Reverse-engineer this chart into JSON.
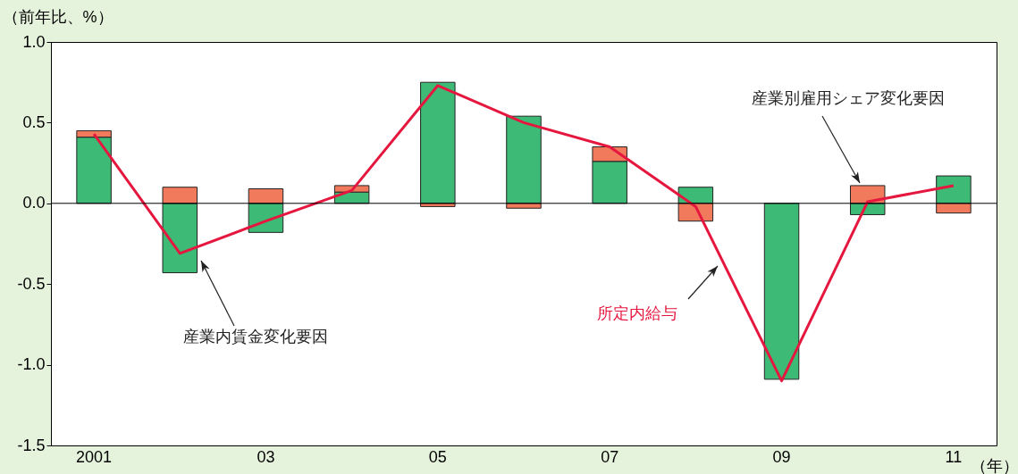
{
  "chart_data": {
    "type": "bar",
    "stacked": true,
    "ylabel": "（前年比、%）",
    "xlabel": "（年）",
    "categories": [
      "2001",
      null,
      "03",
      null,
      "05",
      null,
      "07",
      null,
      "09",
      null,
      "11"
    ],
    "series": [
      {
        "name": "産業内賃金変化要因",
        "color": "#3dba76",
        "values": [
          0.41,
          -0.43,
          -0.18,
          0.07,
          0.75,
          0.54,
          0.26,
          0.1,
          -1.09,
          -0.07,
          0.17
        ]
      },
      {
        "name": "産業別雇用シェア変化要因",
        "color": "#f27a5c",
        "values": [
          0.04,
          0.1,
          0.09,
          0.04,
          -0.02,
          -0.03,
          0.09,
          -0.11,
          null,
          0.11,
          -0.06
        ]
      },
      {
        "name": "所定内給与",
        "type": "line",
        "color": "#e5173f",
        "values": [
          0.43,
          -0.31,
          -0.11,
          0.08,
          0.73,
          0.5,
          0.35,
          -0.02,
          -1.1,
          0.01,
          0.11
        ]
      }
    ],
    "ylim": [
      -1.5,
      1.0
    ],
    "yticks": [
      {
        "value": -1.5,
        "label": "-1.5"
      },
      {
        "value": -1,
        "label": "-1.0"
      },
      {
        "value": -0.5,
        "label": "-0.5"
      },
      {
        "value": 0,
        "label": "0.0"
      },
      {
        "value": 0.5,
        "label": "0.5"
      },
      {
        "value": 1,
        "label": "1.0"
      }
    ]
  }
}
